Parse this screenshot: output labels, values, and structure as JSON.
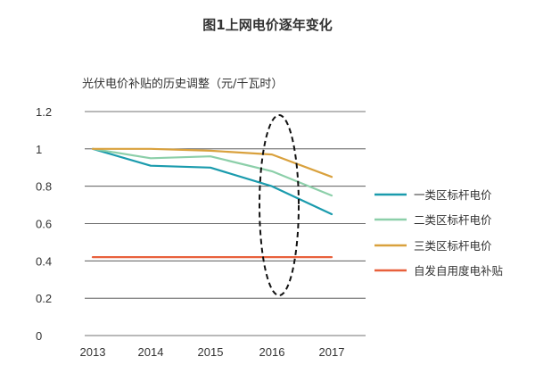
{
  "figure": {
    "title": "图1上网电价逐年变化"
  },
  "chart_data": {
    "type": "line",
    "title": "光伏电价补贴的历史调整（元/千瓦时）",
    "xlabel": "",
    "ylabel": "",
    "categories": [
      "2013",
      "2014",
      "2015",
      "2016",
      "2017"
    ],
    "ylim": [
      0,
      1.2
    ],
    "yticks": [
      "1.2",
      "1",
      "0.8",
      "0.6",
      "0.4",
      "0.2",
      "0"
    ],
    "grid": true,
    "legend_position": "right",
    "series": [
      {
        "name": "一类区标杆电价",
        "color": "#1a9bad",
        "values": [
          1.0,
          0.91,
          0.9,
          0.8,
          0.65
        ]
      },
      {
        "name": "二类区标杆电价",
        "color": "#8ccfa9",
        "values": [
          1.0,
          0.95,
          0.96,
          0.88,
          0.75
        ]
      },
      {
        "name": "三类区标杆电价",
        "color": "#d9a13d",
        "values": [
          1.0,
          1.0,
          0.99,
          0.97,
          0.85
        ]
      },
      {
        "name": "自发自用度电补贴",
        "color": "#e8603c",
        "values": [
          0.42,
          0.42,
          0.42,
          0.42,
          0.42
        ]
      }
    ],
    "annotation": {
      "type": "dashed-ellipse",
      "category": "2016"
    }
  }
}
